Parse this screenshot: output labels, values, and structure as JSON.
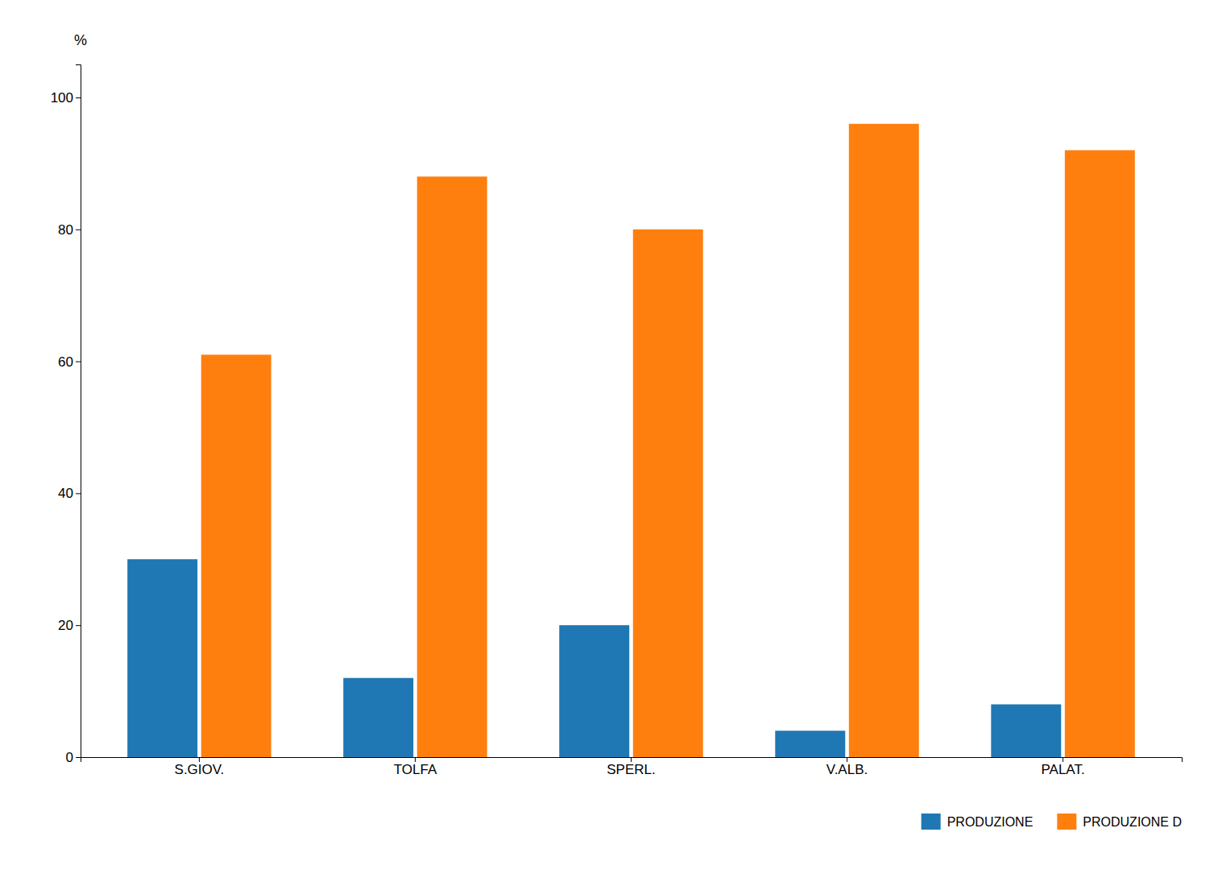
{
  "chart_data": {
    "type": "bar",
    "categories": [
      "S.GIOV.",
      "TOLFA",
      "SPERL.",
      "V.ALB.",
      "PALAT."
    ],
    "series": [
      {
        "name": "PRODUZIONE",
        "values": [
          30,
          12,
          20,
          4,
          8
        ]
      },
      {
        "name": "PRODUZIONE D",
        "values": [
          61,
          88,
          80,
          96,
          92
        ]
      }
    ],
    "y_label": "%",
    "ylim": [
      0,
      105
    ],
    "yticks": [
      0,
      20,
      40,
      60,
      80,
      100
    ],
    "grid": false,
    "legend": "lower right"
  }
}
